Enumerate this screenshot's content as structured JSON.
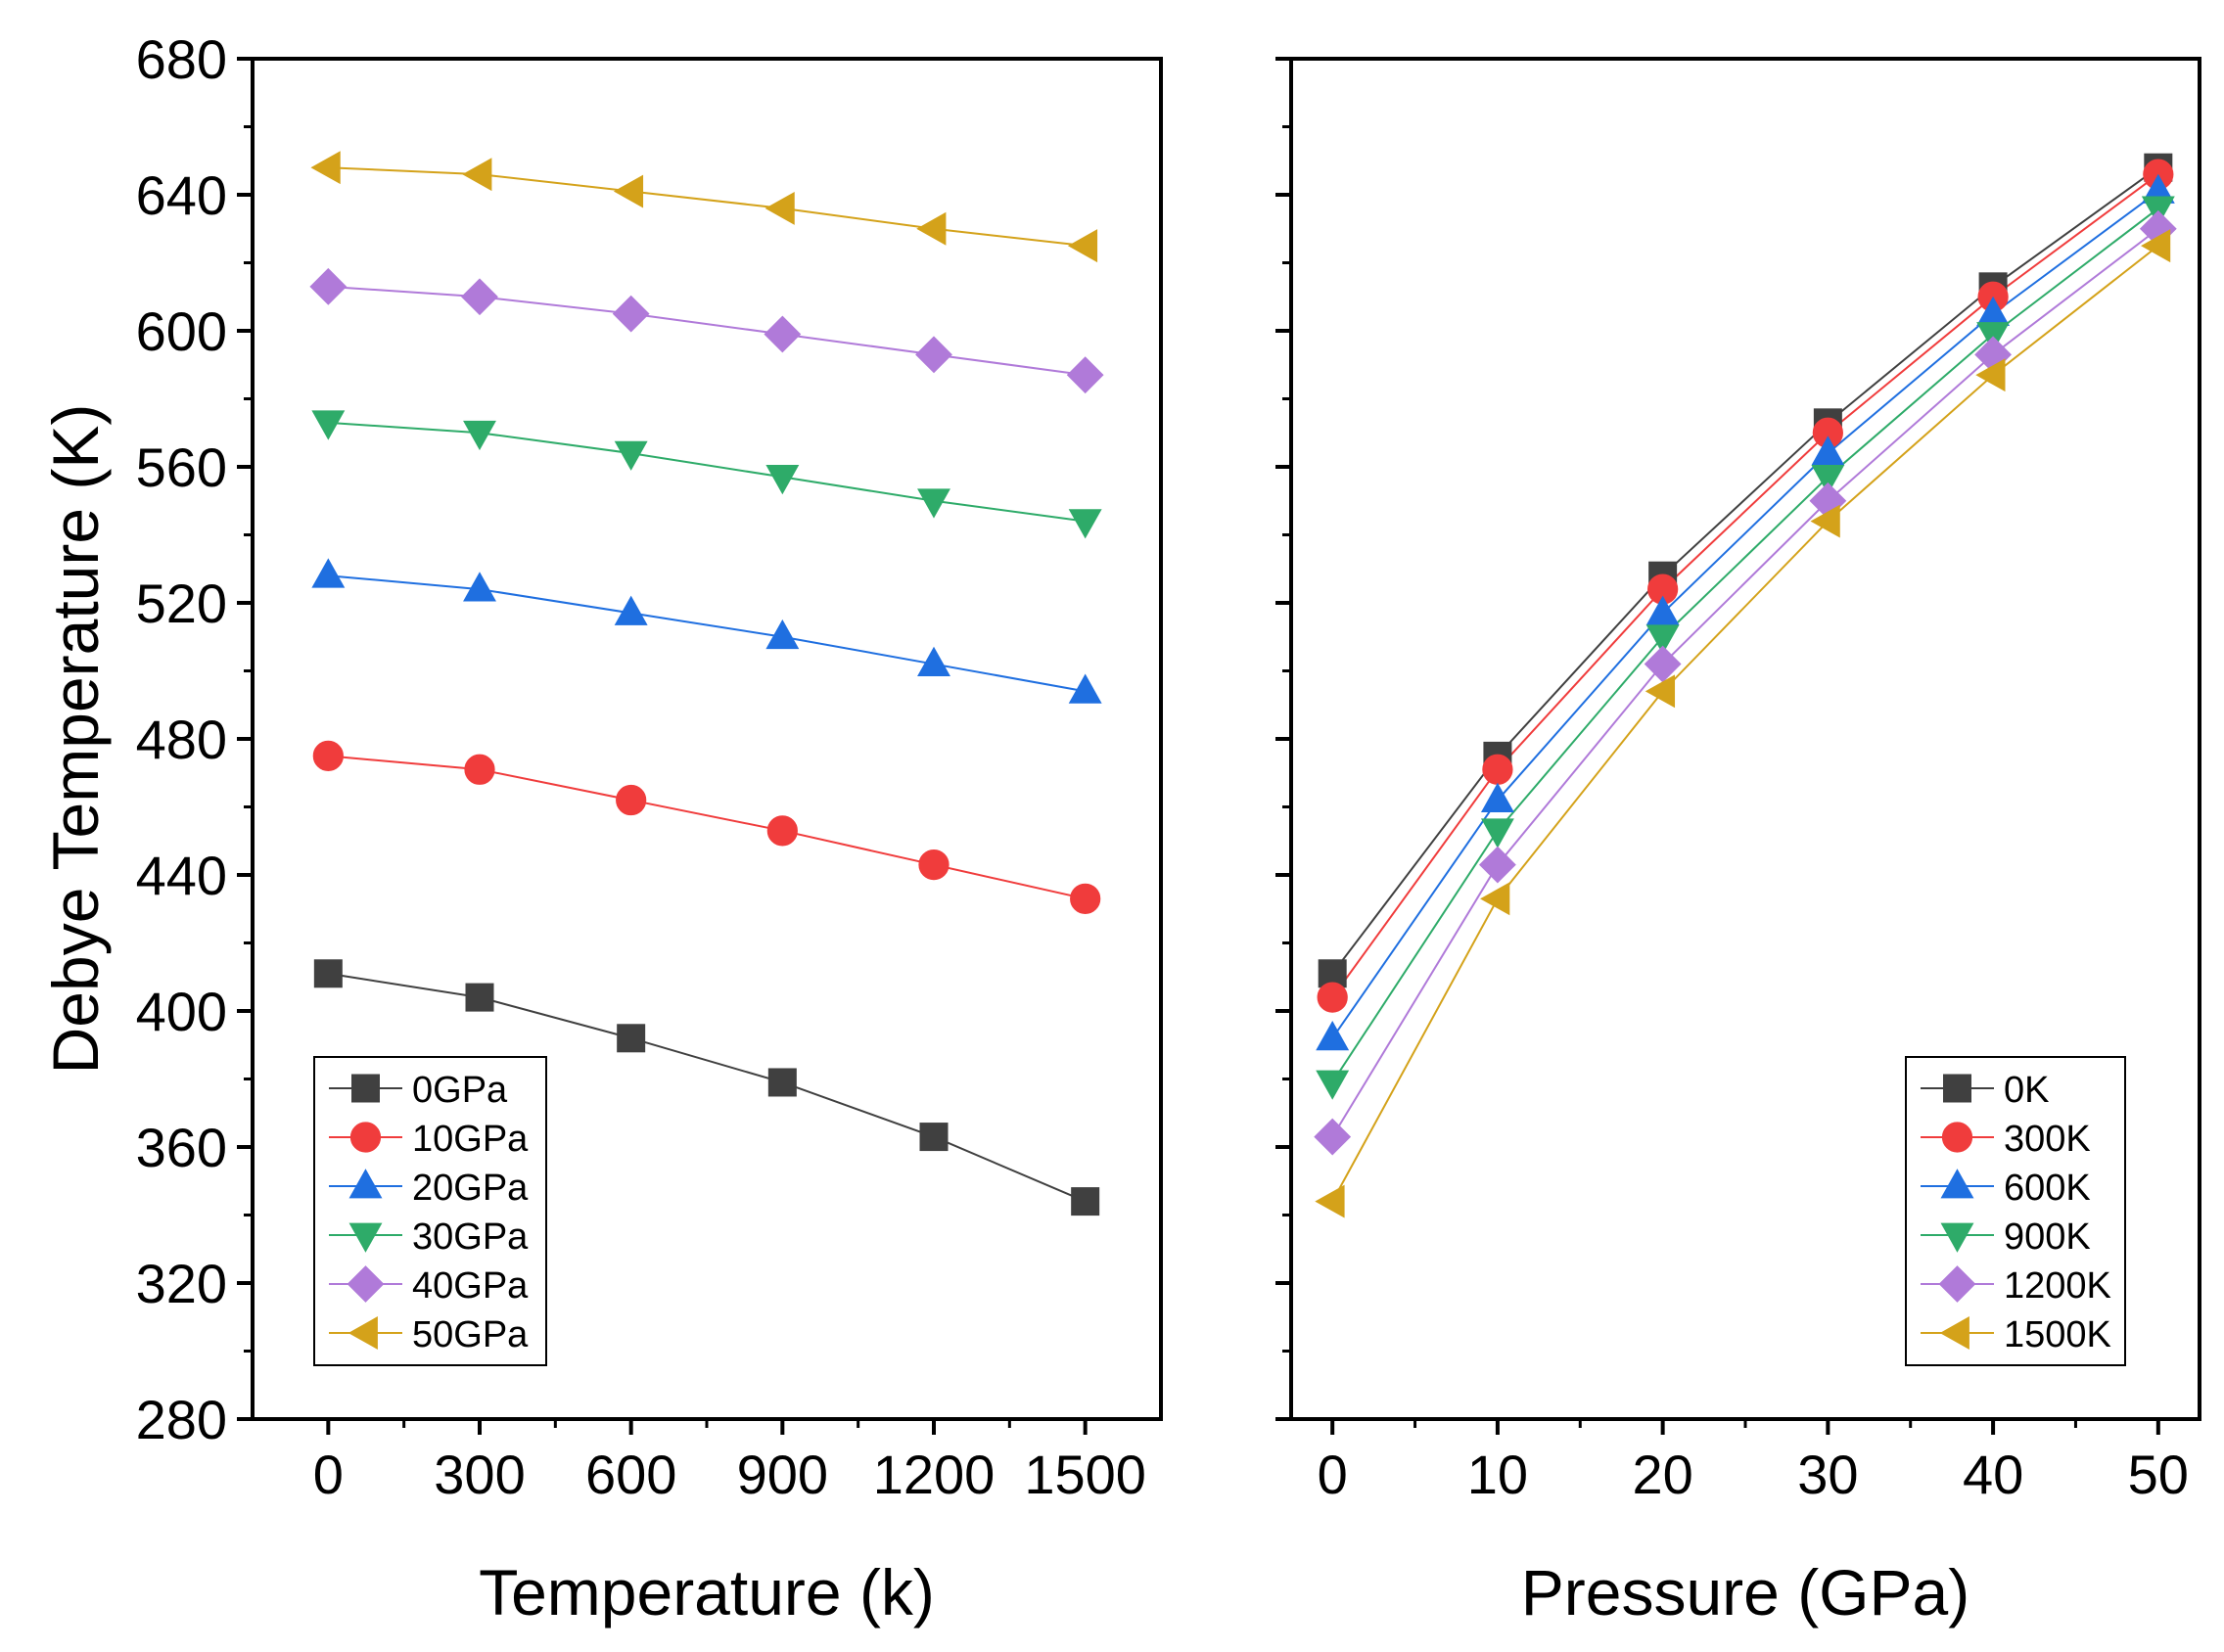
{
  "colors": {
    "0": "#404040",
    "1": "#f03c3c",
    "2": "#1f6fe0",
    "3": "#2eab69",
    "4": "#b07ad9",
    "5": "#d4a21a"
  },
  "chart_data": [
    {
      "type": "line",
      "xlabel": "Temperature (k)",
      "ylabel": "Debye Temperature (K)",
      "xlim": [
        -150,
        1650
      ],
      "ylim": [
        280,
        680
      ],
      "x_ticks": [
        0,
        300,
        600,
        900,
        1200,
        1500
      ],
      "x_tick_labels": [
        "0",
        "300",
        "600",
        "900",
        "1200",
        "1500"
      ],
      "y_ticks": [
        280,
        320,
        360,
        400,
        440,
        480,
        520,
        560,
        600,
        640,
        680
      ],
      "y_tick_labels": [
        "280",
        "320",
        "360",
        "400",
        "440",
        "480",
        "520",
        "560",
        "600",
        "640",
        "680"
      ],
      "legend_position": "bottom-left",
      "x": [
        0,
        300,
        600,
        900,
        1200,
        1500
      ],
      "series": [
        {
          "name": "0GPa",
          "marker": "square",
          "values": [
            411,
            404,
            392,
            379,
            363,
            344
          ]
        },
        {
          "name": "10GPa",
          "marker": "circle",
          "values": [
            475,
            471,
            462,
            453,
            443,
            433
          ]
        },
        {
          "name": "20GPa",
          "marker": "triangle-up",
          "values": [
            528,
            524,
            517,
            510,
            502,
            494
          ]
        },
        {
          "name": "30GPa",
          "marker": "triangle-down",
          "values": [
            573,
            570,
            564,
            557,
            550,
            544
          ]
        },
        {
          "name": "40GPa",
          "marker": "diamond",
          "values": [
            613,
            610,
            605,
            599,
            593,
            587
          ]
        },
        {
          "name": "50GPa",
          "marker": "triangle-left",
          "values": [
            648,
            646,
            641,
            636,
            630,
            625
          ]
        }
      ]
    },
    {
      "type": "line",
      "xlabel": "Pressure (GPa)",
      "ylabel": "",
      "xlim": [
        -2.5,
        52.5
      ],
      "ylim": [
        280,
        680
      ],
      "x_ticks": [
        0,
        10,
        20,
        30,
        40,
        50
      ],
      "x_tick_labels": [
        "0",
        "10",
        "20",
        "30",
        "40",
        "50"
      ],
      "y_ticks": [
        280,
        320,
        360,
        400,
        440,
        480,
        520,
        560,
        600,
        640,
        680
      ],
      "y_tick_labels": [],
      "legend_position": "bottom-right",
      "x": [
        0,
        10,
        20,
        30,
        40,
        50
      ],
      "series": [
        {
          "name": "0K",
          "marker": "square",
          "values": [
            411,
            475,
            528,
            573,
            613,
            648
          ]
        },
        {
          "name": "300K",
          "marker": "circle",
          "values": [
            404,
            471,
            524,
            570,
            610,
            646
          ]
        },
        {
          "name": "600K",
          "marker": "triangle-up",
          "values": [
            392,
            462,
            517,
            564,
            605,
            641
          ]
        },
        {
          "name": "900K",
          "marker": "triangle-down",
          "values": [
            379,
            453,
            510,
            557,
            599,
            636
          ]
        },
        {
          "name": "1200K",
          "marker": "diamond",
          "values": [
            363,
            443,
            502,
            550,
            593,
            630
          ]
        },
        {
          "name": "1500K",
          "marker": "triangle-left",
          "values": [
            344,
            433,
            494,
            544,
            587,
            625
          ]
        }
      ]
    }
  ]
}
